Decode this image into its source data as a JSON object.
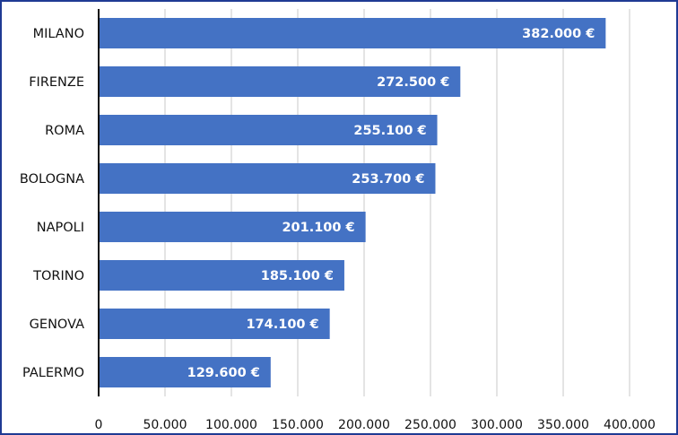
{
  "chart_data": {
    "type": "bar",
    "orientation": "horizontal",
    "categories": [
      "MILANO",
      "FIRENZE",
      "ROMA",
      "BOLOGNA",
      "NAPOLI",
      "TORINO",
      "GENOVA",
      "PALERMO"
    ],
    "values": [
      382000,
      272500,
      255100,
      253700,
      201100,
      185100,
      174100,
      129600
    ],
    "value_labels": [
      "382.000 €",
      "272.500 €",
      "255.100 €",
      "253.700 €",
      "201.100 €",
      "185.100 €",
      "174.100 €",
      "129.600 €"
    ],
    "x_ticks": [
      0,
      50000,
      100000,
      150000,
      200000,
      250000,
      300000,
      350000,
      400000
    ],
    "x_tick_labels": [
      "0",
      "50.000",
      "100.000",
      "150.000",
      "200.000",
      "250.000",
      "300.000",
      "350.000",
      "400.000"
    ],
    "xlim": [
      0,
      400000
    ],
    "grid": "vertical",
    "title": "",
    "xlabel": "",
    "ylabel": "",
    "colors": {
      "bar": "#4472c4",
      "grid": "#c8c8c8",
      "axis": "#111111",
      "border": "#1f3a93"
    }
  }
}
